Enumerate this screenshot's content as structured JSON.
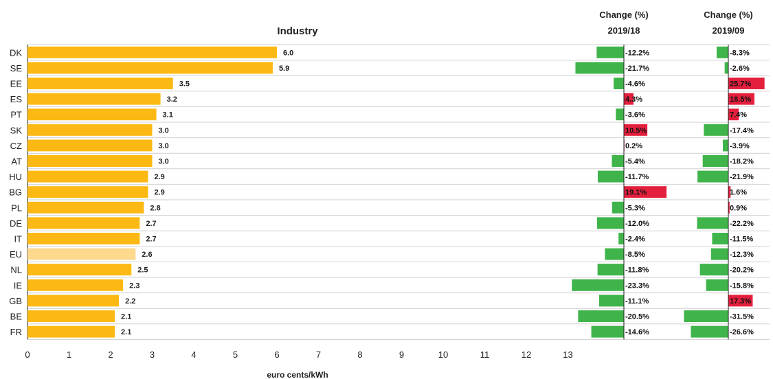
{
  "chart_data": {
    "type": "bar",
    "title": "Industry",
    "xlabel": "euro cents/kWh",
    "xlim": [
      0,
      13
    ],
    "xticks": [
      "0",
      "1",
      "2",
      "3",
      "4",
      "5",
      "6",
      "7",
      "8",
      "9",
      "10",
      "11",
      "12",
      "13"
    ],
    "categories": [
      "DK",
      "SE",
      "EE",
      "ES",
      "PT",
      "SK",
      "CZ",
      "AT",
      "HU",
      "BG",
      "PL",
      "DE",
      "IT",
      "EU",
      "NL",
      "IE",
      "GB",
      "BE",
      "FR"
    ],
    "values": [
      6.0,
      5.9,
      3.5,
      3.2,
      3.1,
      3.0,
      3.0,
      3.0,
      2.9,
      2.9,
      2.8,
      2.7,
      2.7,
      2.6,
      2.5,
      2.3,
      2.2,
      2.1,
      2.1
    ],
    "value_labels": [
      "6.0",
      "5.9",
      "3.5",
      "3.2",
      "3.1",
      "3.0",
      "3.0",
      "3.0",
      "2.9",
      "2.9",
      "2.8",
      "2.7",
      "2.7",
      "2.6",
      "2.5",
      "2.3",
      "2.2",
      "2.1",
      "2.1"
    ],
    "highlight_category": "EU",
    "colors": {
      "bar": "#fdb913",
      "highlight": "#fdd98e",
      "increase": "#e41f3d",
      "decrease": "#3fb44a",
      "grid": "#cfcfcf",
      "axis": "#222222"
    },
    "change_panels": [
      {
        "header_line1": "Change (%)",
        "header_line2": "2019/18",
        "values": [
          -12.2,
          -21.7,
          -4.6,
          4.3,
          -3.6,
          10.5,
          0.2,
          -5.4,
          -11.7,
          19.1,
          -5.3,
          -12.0,
          -2.4,
          -8.5,
          -11.8,
          -23.3,
          -11.1,
          -20.5,
          -14.6
        ],
        "labels": [
          "-12.2%",
          "-21.7%",
          "-4.6%",
          "4.3%",
          "-3.6%",
          "10.5%",
          "0.2%",
          "-5.4%",
          "-11.7%",
          "19.1%",
          "-5.3%",
          "-12.0%",
          "-2.4%",
          "-8.5%",
          "-11.8%",
          "-23.3%",
          "-11.1%",
          "-20.5%",
          "-14.6%"
        ]
      },
      {
        "header_line1": "Change (%)",
        "header_line2": "2019/09",
        "values": [
          -8.3,
          -2.6,
          25.7,
          18.5,
          7.4,
          -17.4,
          -3.9,
          -18.2,
          -21.9,
          1.6,
          0.9,
          -22.2,
          -11.5,
          -12.3,
          -20.2,
          -15.8,
          17.3,
          -31.5,
          -26.6
        ],
        "labels": [
          "-8.3%",
          "-2.6%",
          "25.7%",
          "18.5%",
          "7.4%",
          "-17.4%",
          "-3.9%",
          "-18.2%",
          "-21.9%",
          "1.6%",
          "0.9%",
          "-22.2%",
          "-11.5%",
          "-12.3%",
          "-20.2%",
          "-15.8%",
          "17.3%",
          "-31.5%",
          "-26.6%"
        ]
      }
    ]
  }
}
